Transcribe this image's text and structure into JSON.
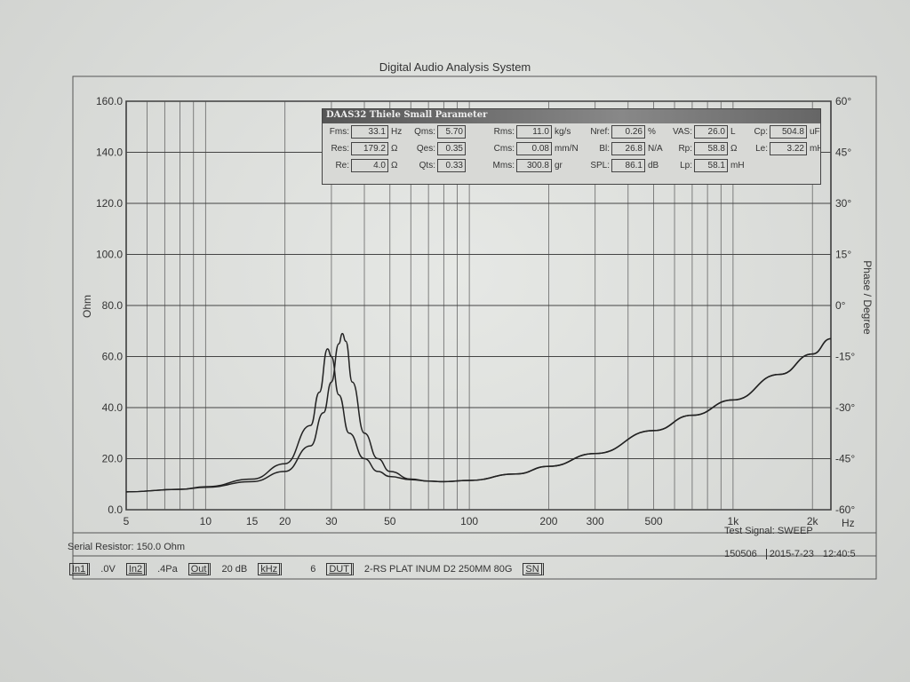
{
  "header": {
    "title": "Digital Audio Analysis System"
  },
  "ts_panel": {
    "title": "DAAS32 Thiele Small Parameter",
    "rows": [
      [
        {
          "l": "Fms:",
          "v": "33.1",
          "u": "Hz"
        },
        {
          "l": "Qms:",
          "v": "5.70",
          "u": ""
        },
        {
          "l": "Rms:",
          "v": "11.0",
          "u": "kg/s"
        },
        {
          "l": "Nref:",
          "v": "0.26",
          "u": "%"
        },
        {
          "l": "VAS:",
          "v": "26.0",
          "u": "L"
        },
        {
          "l": "Cp:",
          "v": "504.8",
          "u": "uF"
        }
      ],
      [
        {
          "l": "Res:",
          "v": "179.2",
          "u": "Ω"
        },
        {
          "l": "Qes:",
          "v": "0.35",
          "u": ""
        },
        {
          "l": "Cms:",
          "v": "0.08",
          "u": "mm/N"
        },
        {
          "l": "Bl:",
          "v": "26.8",
          "u": "N/A"
        },
        {
          "l": "Rp:",
          "v": "58.8",
          "u": "Ω"
        },
        {
          "l": "Le:",
          "v": "3.22",
          "u": "mH"
        }
      ],
      [
        {
          "l": "Re:",
          "v": "4.0",
          "u": "Ω"
        },
        {
          "l": "Qts:",
          "v": "0.33",
          "u": ""
        },
        {
          "l": "Mms:",
          "v": "300.8",
          "u": "gr"
        },
        {
          "l": "SPL:",
          "v": "86.1",
          "u": "dB"
        },
        {
          "l": "Lp:",
          "v": "58.1",
          "u": "mH"
        }
      ]
    ]
  },
  "chart_data": {
    "type": "line",
    "xlabel": "Hz",
    "ylabel": "Ohm",
    "y2label": "Phase / Degree",
    "xscale": "log",
    "xlim": [
      5,
      2350
    ],
    "ylim": [
      0,
      160
    ],
    "y2lim": [
      -60,
      60
    ],
    "grid": true,
    "xticks": [
      5,
      10,
      15,
      20,
      30,
      50,
      100,
      200,
      300,
      500,
      "1k",
      "2k"
    ],
    "xtick_values": [
      5,
      10,
      15,
      20,
      30,
      50,
      100,
      200,
      300,
      500,
      1000,
      2000
    ],
    "yticks": [
      "0.0",
      "20.0",
      "40.0",
      "60.0",
      "80.0",
      "100.0",
      "120.0",
      "140.0",
      "160.0"
    ],
    "y2ticks": [
      "-60°",
      "-45°",
      "-30°",
      "-15°",
      "0°",
      "15°",
      "30°",
      "45°",
      "60°"
    ],
    "series": [
      {
        "x": [
          5,
          8,
          10,
          15,
          20,
          25,
          28,
          30,
          32,
          33,
          34,
          36,
          40,
          45,
          50,
          60,
          70,
          80,
          100,
          150,
          200,
          300,
          500,
          700,
          1000,
          1500,
          2000,
          2350
        ],
        "y": [
          7,
          8,
          8.8,
          11,
          15,
          25,
          38,
          50,
          65,
          69,
          66,
          50,
          30,
          20,
          15,
          12,
          11.2,
          11,
          11.5,
          14,
          17,
          22,
          31,
          37,
          43,
          53,
          61,
          67
        ]
      },
      {
        "x": [
          5,
          8,
          10,
          15,
          20,
          25,
          27,
          29,
          30,
          32,
          35,
          40,
          45,
          50,
          60,
          70,
          80,
          100,
          150,
          200,
          300,
          500,
          700,
          1000,
          1500,
          2000,
          2350
        ],
        "y": [
          7,
          8,
          9,
          12,
          18,
          33,
          46,
          63,
          60,
          45,
          30,
          20,
          15,
          13,
          11.8,
          11.2,
          11,
          11.5,
          14,
          17,
          22,
          31,
          37,
          43,
          53,
          61,
          67
        ]
      }
    ]
  },
  "footer": {
    "test_signal": "Test Signal: SWEEP",
    "serial_resistor": "Serial Resistor: 150.0 Ohm",
    "in1": "In1",
    "v0": ".0V",
    "in2": "In2",
    "pa": ".4Pa",
    "out": "Out",
    "db": "20 dB",
    "khz": "kHz",
    "six": "6",
    "dut": "DUT",
    "dut_name": "2-RS PLAT INUM D2  250MM  80G",
    "sn": "SN",
    "serial": "150506",
    "date": "2015-7-23",
    "time": "12:40:5"
  }
}
